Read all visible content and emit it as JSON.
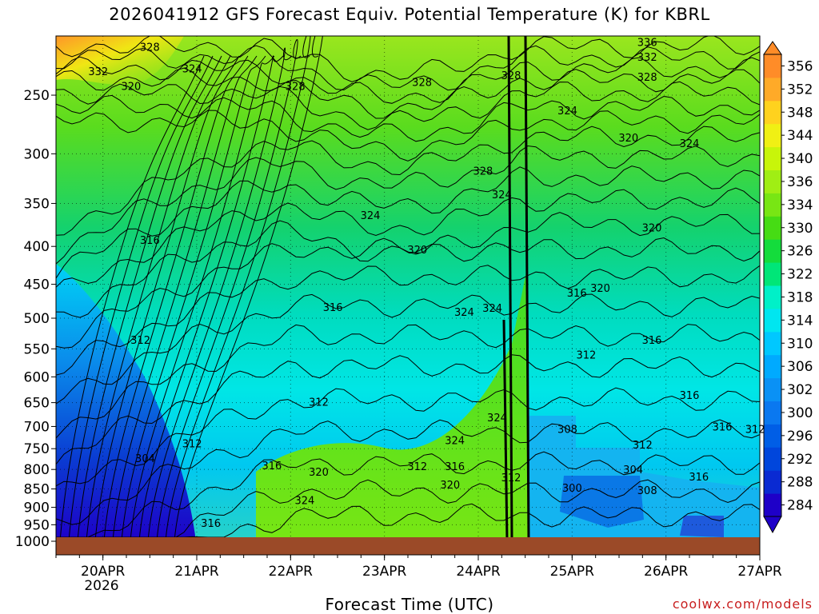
{
  "title": "2026041912 GFS Forecast Equiv. Potential Temperature (K) for KBRL",
  "x_axis_title": "Forecast Time (UTC)",
  "credit": "coolwx.com/models",
  "colors": {
    "ground": "#9b4a28",
    "credit": "#c81e1e"
  },
  "chart_data": {
    "type": "heatmap",
    "title": "2026041912 GFS Forecast Equiv. Potential Temperature (K) for KBRL",
    "xlabel": "Forecast Time (UTC)",
    "ylabel": "",
    "x_ticks": [
      "20APR",
      "21APR",
      "22APR",
      "23APR",
      "24APR",
      "25APR",
      "26APR",
      "27APR"
    ],
    "x_tick_sublabel": "2026",
    "xlim": [
      "2026-04-19T12",
      "2026-04-27T00"
    ],
    "y_ticks": [
      250,
      300,
      350,
      400,
      450,
      500,
      550,
      600,
      650,
      700,
      750,
      800,
      850,
      900,
      950,
      1000
    ],
    "ylim": [
      1000,
      200
    ],
    "y_scale": "log-pressure",
    "grid": true,
    "colorbar": {
      "labels": [
        284,
        288,
        292,
        296,
        300,
        302,
        306,
        310,
        314,
        318,
        322,
        326,
        330,
        334,
        336,
        340,
        344,
        348,
        352,
        356
      ],
      "colors": [
        "#1e00c8",
        "#0a2ad2",
        "#0046dc",
        "#005ee6",
        "#0a78f0",
        "#0a91f5",
        "#00aaff",
        "#00c8ff",
        "#00e6f0",
        "#00f0c8",
        "#00e678",
        "#14dc3c",
        "#46dc14",
        "#78e614",
        "#a0ee14",
        "#c8f50a",
        "#f0f014",
        "#ffd21e",
        "#ffaa28",
        "#ff8c28"
      ],
      "position": "right"
    },
    "contour_labels": [
      {
        "t": 0.45,
        "p": 232,
        "v": "332"
      },
      {
        "t": 1.0,
        "p": 215,
        "v": "328"
      },
      {
        "t": 0.8,
        "p": 243,
        "v": "320"
      },
      {
        "t": 1.45,
        "p": 230,
        "v": "324"
      },
      {
        "t": 2.55,
        "p": 243,
        "v": "328"
      },
      {
        "t": 3.9,
        "p": 240,
        "v": "328"
      },
      {
        "t": 4.85,
        "p": 235,
        "v": "328"
      },
      {
        "t": 6.3,
        "p": 212,
        "v": "336"
      },
      {
        "t": 6.3,
        "p": 222,
        "v": "332"
      },
      {
        "t": 6.3,
        "p": 236,
        "v": "328"
      },
      {
        "t": 5.45,
        "p": 262,
        "v": "324"
      },
      {
        "t": 6.1,
        "p": 285,
        "v": "320"
      },
      {
        "t": 6.75,
        "p": 290,
        "v": "324"
      },
      {
        "t": 4.55,
        "p": 316,
        "v": "328"
      },
      {
        "t": 4.75,
        "p": 340,
        "v": "324"
      },
      {
        "t": 3.35,
        "p": 363,
        "v": "324"
      },
      {
        "t": 6.35,
        "p": 377,
        "v": "320"
      },
      {
        "t": 1.0,
        "p": 392,
        "v": "316"
      },
      {
        "t": 3.85,
        "p": 404,
        "v": "320"
      },
      {
        "t": 5.8,
        "p": 455,
        "v": "320"
      },
      {
        "t": 5.55,
        "p": 462,
        "v": "316"
      },
      {
        "t": 2.95,
        "p": 483,
        "v": "316"
      },
      {
        "t": 4.35,
        "p": 490,
        "v": "324"
      },
      {
        "t": 4.65,
        "p": 484,
        "v": "324"
      },
      {
        "t": 0.9,
        "p": 535,
        "v": "312"
      },
      {
        "t": 5.65,
        "p": 560,
        "v": "312"
      },
      {
        "t": 6.35,
        "p": 535,
        "v": "316"
      },
      {
        "t": 2.8,
        "p": 648,
        "v": "312"
      },
      {
        "t": 4.7,
        "p": 680,
        "v": "324"
      },
      {
        "t": 6.75,
        "p": 635,
        "v": "316"
      },
      {
        "t": 5.45,
        "p": 705,
        "v": "308"
      },
      {
        "t": 7.1,
        "p": 700,
        "v": "316"
      },
      {
        "t": 7.45,
        "p": 705,
        "v": "312"
      },
      {
        "t": 1.45,
        "p": 738,
        "v": "312"
      },
      {
        "t": 4.25,
        "p": 730,
        "v": "324"
      },
      {
        "t": 0.95,
        "p": 772,
        "v": "304"
      },
      {
        "t": 6.25,
        "p": 740,
        "v": "312"
      },
      {
        "t": 2.3,
        "p": 790,
        "v": "316"
      },
      {
        "t": 2.8,
        "p": 806,
        "v": "320"
      },
      {
        "t": 3.85,
        "p": 792,
        "v": "312"
      },
      {
        "t": 4.25,
        "p": 792,
        "v": "316"
      },
      {
        "t": 4.2,
        "p": 838,
        "v": "320"
      },
      {
        "t": 6.15,
        "p": 800,
        "v": "304"
      },
      {
        "t": 4.85,
        "p": 820,
        "v": "312"
      },
      {
        "t": 6.85,
        "p": 818,
        "v": "316"
      },
      {
        "t": 5.5,
        "p": 847,
        "v": "300"
      },
      {
        "t": 6.3,
        "p": 853,
        "v": "308"
      },
      {
        "t": 2.65,
        "p": 880,
        "v": "324"
      },
      {
        "t": 1.65,
        "p": 945,
        "v": "316"
      }
    ]
  }
}
